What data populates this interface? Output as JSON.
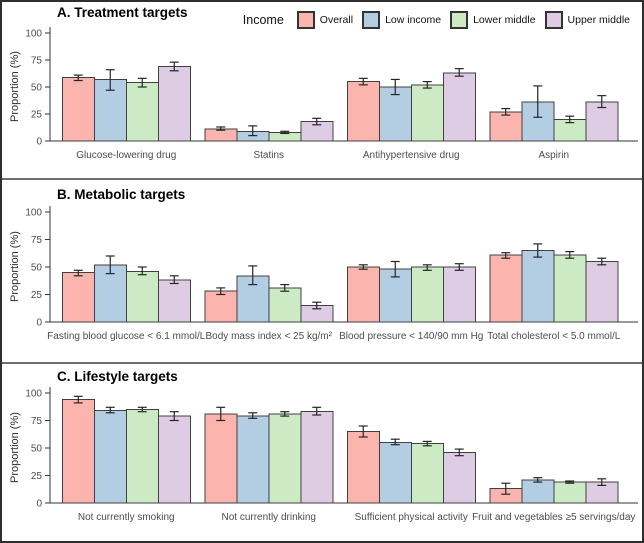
{
  "figure": {
    "y_axis_label": "Proportion (%)",
    "y_ticks": [
      0,
      25,
      50,
      75,
      100
    ],
    "colors": {
      "overall": "#FBB4AE",
      "low_income": "#B3CDE3",
      "lower_middle": "#CCEBC5",
      "upper_middle": "#DECBE4",
      "bar_outline": "#404040",
      "error_bar": "#262626",
      "axis": "#333333",
      "tick_label": "#4d4d4d",
      "category_label": "#4d4d4d"
    },
    "legend": {
      "title": "Income",
      "entries": [
        {
          "label": "Overall",
          "color": "#FBB4AE"
        },
        {
          "label": "Low income",
          "color": "#B3CDE3"
        },
        {
          "label": "Lower middle",
          "color": "#CCEBC5"
        },
        {
          "label": "Upper middle",
          "color": "#DECBE4"
        }
      ]
    }
  },
  "chart_data": [
    {
      "type": "bar",
      "panel": "A",
      "title": "A. Treatment targets",
      "ylabel": "Proportion (%)",
      "ylim": [
        0,
        100
      ],
      "grid": false,
      "legend_position": "top-right",
      "categories": [
        "Glucose-lowering drug",
        "Statins",
        "Antihypertensive drug",
        "Aspirin"
      ],
      "series": [
        {
          "name": "Overall",
          "color": "#FBB4AE",
          "values": [
            59,
            11,
            55,
            27
          ],
          "ci_low": [
            56,
            10,
            52,
            24
          ],
          "ci_high": [
            61,
            13,
            58,
            30
          ]
        },
        {
          "name": "Low income",
          "color": "#B3CDE3",
          "values": [
            57,
            9,
            50,
            36
          ],
          "ci_low": [
            47,
            5,
            43,
            22
          ],
          "ci_high": [
            66,
            14,
            57,
            51
          ]
        },
        {
          "name": "Lower middle",
          "color": "#CCEBC5",
          "values": [
            54,
            8,
            52,
            20
          ],
          "ci_low": [
            50,
            7,
            49,
            17
          ],
          "ci_high": [
            58,
            9,
            55,
            23
          ]
        },
        {
          "name": "Upper middle",
          "color": "#DECBE4",
          "values": [
            69,
            18,
            63,
            36
          ],
          "ci_low": [
            65,
            15,
            60,
            31
          ],
          "ci_high": [
            73,
            21,
            67,
            42
          ]
        }
      ]
    },
    {
      "type": "bar",
      "panel": "B",
      "title": "B. Metabolic targets",
      "ylabel": "Proportion (%)",
      "ylim": [
        0,
        100
      ],
      "grid": false,
      "categories": [
        "Fasting blood glucose < 6.1 mmol/L",
        "Body mass index < 25 kg/m²",
        "Blood pressure < 140/90 mm Hg",
        "Total cholesterol < 5.0 mmol/L"
      ],
      "series": [
        {
          "name": "Overall",
          "color": "#FBB4AE",
          "values": [
            45,
            28,
            50,
            61
          ],
          "ci_low": [
            42,
            25,
            48,
            58
          ],
          "ci_high": [
            47,
            31,
            52,
            63
          ]
        },
        {
          "name": "Low income",
          "color": "#B3CDE3",
          "values": [
            52,
            42,
            48,
            65
          ],
          "ci_low": [
            44,
            34,
            41,
            59
          ],
          "ci_high": [
            60,
            51,
            55,
            71
          ]
        },
        {
          "name": "Lower middle",
          "color": "#CCEBC5",
          "values": [
            46,
            31,
            50,
            61
          ],
          "ci_low": [
            43,
            28,
            47,
            58
          ],
          "ci_high": [
            50,
            34,
            52,
            64
          ]
        },
        {
          "name": "Upper middle",
          "color": "#DECBE4",
          "values": [
            38,
            15,
            50,
            55
          ],
          "ci_low": [
            35,
            12,
            47,
            52
          ],
          "ci_high": [
            42,
            18,
            53,
            58
          ]
        }
      ]
    },
    {
      "type": "bar",
      "panel": "C",
      "title": "C. Lifestyle targets",
      "ylabel": "Proportion (%)",
      "ylim": [
        0,
        100
      ],
      "grid": false,
      "categories": [
        "Not currently smoking",
        "Not currently drinking",
        "Sufficient physical activity",
        "Fruit and vegetables ≥5 servings/day"
      ],
      "series": [
        {
          "name": "Overall",
          "color": "#FBB4AE",
          "values": [
            94,
            81,
            65,
            13
          ],
          "ci_low": [
            91,
            75,
            60,
            8
          ],
          "ci_high": [
            97,
            87,
            70,
            18
          ]
        },
        {
          "name": "Low income",
          "color": "#B3CDE3",
          "values": [
            84,
            79,
            55,
            21
          ],
          "ci_low": [
            82,
            77,
            53,
            19
          ],
          "ci_high": [
            87,
            82,
            58,
            23
          ]
        },
        {
          "name": "Lower middle",
          "color": "#CCEBC5",
          "values": [
            85,
            81,
            54,
            19
          ],
          "ci_low": [
            83,
            79,
            52,
            18
          ],
          "ci_high": [
            87,
            83,
            56,
            20
          ]
        },
        {
          "name": "Upper middle",
          "color": "#DECBE4",
          "values": [
            79,
            83,
            46,
            19
          ],
          "ci_low": [
            75,
            80,
            43,
            16
          ],
          "ci_high": [
            83,
            87,
            49,
            22
          ]
        }
      ]
    }
  ]
}
